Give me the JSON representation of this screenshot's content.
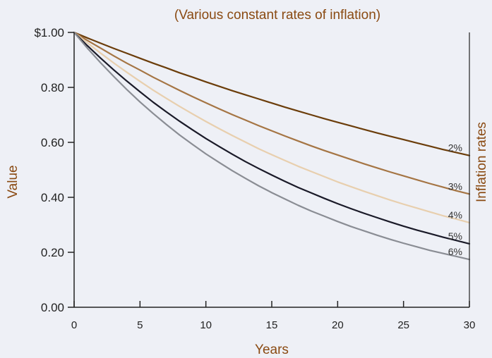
{
  "chart_data": {
    "type": "line",
    "title": "(Various constant rates of inflation)",
    "xlabel": "Years",
    "ylabel": "Value",
    "right_label": "Inflation rates",
    "x": [
      0,
      1,
      2,
      3,
      4,
      5,
      6,
      7,
      8,
      9,
      10,
      11,
      12,
      13,
      14,
      15,
      16,
      17,
      18,
      19,
      20,
      21,
      22,
      23,
      24,
      25,
      26,
      27,
      28,
      29,
      30
    ],
    "xlim": [
      0,
      30
    ],
    "ylim": [
      0,
      1
    ],
    "x_ticks": [
      0,
      5,
      10,
      15,
      20,
      25,
      30
    ],
    "x_tick_labels": [
      "0",
      "5",
      "10",
      "15",
      "20",
      "25",
      "30"
    ],
    "y_ticks": [
      0,
      0.2,
      0.4,
      0.6,
      0.8,
      1.0
    ],
    "y_tick_labels": [
      "0.00",
      "0.20",
      "0.40",
      "0.60",
      "0.80",
      "$1.00"
    ],
    "grid": false,
    "series": [
      {
        "name": "2%",
        "color": "#6b3d0a",
        "values": [
          1.0,
          0.98,
          0.961,
          0.942,
          0.924,
          0.906,
          0.888,
          0.871,
          0.853,
          0.837,
          0.82,
          0.804,
          0.788,
          0.773,
          0.758,
          0.743,
          0.728,
          0.714,
          0.7,
          0.686,
          0.673,
          0.66,
          0.647,
          0.634,
          0.622,
          0.61,
          0.598,
          0.586,
          0.574,
          0.563,
          0.552
        ]
      },
      {
        "name": "3%",
        "color": "#a57544",
        "values": [
          1.0,
          0.971,
          0.943,
          0.915,
          0.888,
          0.863,
          0.837,
          0.813,
          0.789,
          0.766,
          0.744,
          0.722,
          0.701,
          0.681,
          0.661,
          0.642,
          0.623,
          0.605,
          0.587,
          0.57,
          0.554,
          0.538,
          0.522,
          0.507,
          0.492,
          0.478,
          0.464,
          0.45,
          0.437,
          0.424,
          0.412
        ]
      },
      {
        "name": "4%",
        "color": "#e8cfae",
        "values": [
          1.0,
          0.962,
          0.925,
          0.889,
          0.855,
          0.822,
          0.79,
          0.76,
          0.731,
          0.703,
          0.676,
          0.65,
          0.625,
          0.601,
          0.577,
          0.555,
          0.534,
          0.513,
          0.494,
          0.475,
          0.456,
          0.439,
          0.422,
          0.406,
          0.39,
          0.375,
          0.361,
          0.347,
          0.333,
          0.321,
          0.308
        ]
      },
      {
        "name": "5%",
        "color": "#1a1a28",
        "values": [
          1.0,
          0.952,
          0.907,
          0.864,
          0.823,
          0.784,
          0.746,
          0.711,
          0.677,
          0.645,
          0.614,
          0.585,
          0.557,
          0.53,
          0.505,
          0.481,
          0.458,
          0.436,
          0.416,
          0.396,
          0.377,
          0.359,
          0.342,
          0.326,
          0.31,
          0.295,
          0.281,
          0.268,
          0.255,
          0.243,
          0.231
        ]
      },
      {
        "name": "6%",
        "color": "#8a8d94",
        "values": [
          1.0,
          0.943,
          0.89,
          0.84,
          0.792,
          0.747,
          0.705,
          0.665,
          0.627,
          0.592,
          0.558,
          0.527,
          0.497,
          0.469,
          0.442,
          0.417,
          0.394,
          0.371,
          0.35,
          0.331,
          0.312,
          0.294,
          0.278,
          0.262,
          0.247,
          0.233,
          0.22,
          0.207,
          0.196,
          0.185,
          0.174
        ]
      }
    ],
    "colors": {
      "title": "#8a4a12",
      "axis_label": "#8a4a12",
      "axis": "#222222",
      "background": "#eef0f6"
    }
  }
}
